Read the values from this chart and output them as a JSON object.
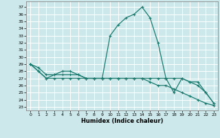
{
  "title": "",
  "xlabel": "Humidex (Indice chaleur)",
  "ylabel": "",
  "bg_color": "#cce8ea",
  "grid_color": "#ffffff",
  "line_color": "#1a7a6e",
  "xlim": [
    -0.5,
    23.5
  ],
  "ylim": [
    22.5,
    37.8
  ],
  "yticks": [
    23,
    24,
    25,
    26,
    27,
    28,
    29,
    30,
    31,
    32,
    33,
    34,
    35,
    36,
    37
  ],
  "xticks": [
    0,
    1,
    2,
    3,
    4,
    5,
    6,
    7,
    8,
    9,
    10,
    11,
    12,
    13,
    14,
    15,
    16,
    17,
    18,
    19,
    20,
    21,
    22,
    23
  ],
  "series": [
    {
      "x": [
        0,
        1,
        2,
        3,
        4,
        5,
        6,
        7,
        8,
        9,
        10,
        11,
        12,
        13,
        14,
        15,
        16,
        17,
        18,
        19,
        20,
        21,
        22,
        23
      ],
      "y": [
        29,
        28,
        27,
        27.5,
        27.5,
        27.5,
        27.5,
        27,
        27,
        27,
        33,
        34.5,
        35.5,
        36,
        37,
        35.5,
        32,
        27,
        25,
        27,
        26.5,
        26,
        25,
        23.5
      ]
    },
    {
      "x": [
        0,
        1,
        2,
        3,
        4,
        5,
        6,
        7,
        8,
        9,
        10,
        11,
        12,
        13,
        14,
        15,
        16,
        17,
        18,
        19,
        20,
        21,
        22,
        23
      ],
      "y": [
        29,
        28.5,
        27.5,
        27.5,
        28,
        28,
        27.5,
        27,
        27,
        27,
        27,
        27,
        27,
        27,
        27,
        27,
        27,
        27,
        27,
        27,
        26.5,
        26.5,
        25,
        23.5
      ]
    },
    {
      "x": [
        0,
        1,
        2,
        3,
        4,
        5,
        6,
        7,
        8,
        9,
        10,
        11,
        12,
        13,
        14,
        15,
        16,
        17,
        18,
        19,
        20,
        21,
        22,
        23
      ],
      "y": [
        29,
        28,
        27,
        27,
        27,
        27,
        27,
        27,
        27,
        27,
        27,
        27,
        27,
        27,
        27,
        26.5,
        26,
        26,
        25.5,
        25,
        24.5,
        24,
        23.5,
        23.2
      ]
    }
  ]
}
